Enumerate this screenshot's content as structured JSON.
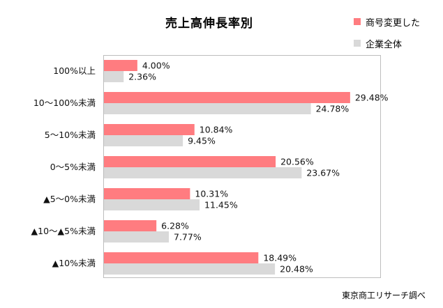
{
  "chart_data": {
    "type": "bar",
    "orientation": "horizontal",
    "title": "売上高伸長率別",
    "categories": [
      "100%以上",
      "10～100%未満",
      "5～10%未満",
      "0～5%未満",
      "▲5～0%未満",
      "▲10～▲5%未満",
      "▲10%未満"
    ],
    "series": [
      {
        "name": "商号変更した",
        "color": "#ff7c80",
        "values": [
          4.0,
          29.48,
          10.84,
          20.56,
          10.31,
          6.28,
          18.49
        ]
      },
      {
        "name": "企業全体",
        "color": "#d9d9d9",
        "values": [
          2.36,
          24.78,
          9.45,
          23.67,
          11.45,
          7.77,
          20.48
        ]
      }
    ],
    "value_suffix": "%",
    "xlim": [
      0,
      33
    ],
    "grid": false,
    "legend_position": "top-right"
  },
  "source": "東京商工リサーチ調べ"
}
